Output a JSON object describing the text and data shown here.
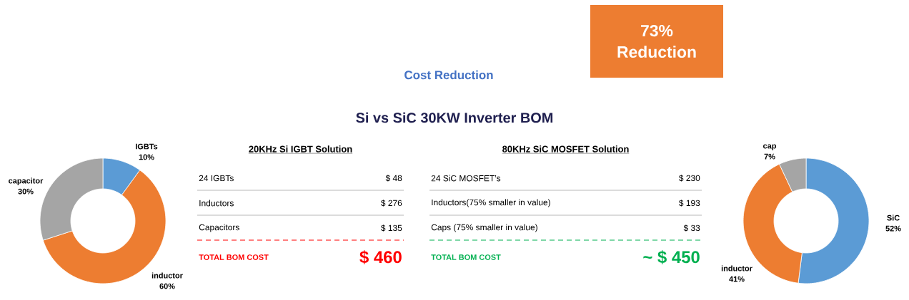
{
  "chart_data": [
    {
      "type": "other",
      "title": "Cost Reduction",
      "subtitle": "Si vs SiC 30KW Inverter BOM",
      "annotations": [
        "73% Reduction"
      ],
      "color": "#ed7d31"
    },
    {
      "type": "donut",
      "categories": [
        "IGBTs",
        "inductor",
        "capacitor"
      ],
      "values": [
        10,
        60,
        30
      ],
      "colors": [
        "#5b9bd5",
        "#ed7d31",
        "#a5a5a5"
      ],
      "value_labels": [
        "10%",
        "60%",
        "30%"
      ],
      "data_labels": true
    },
    {
      "type": "other",
      "title": "20KHz Si IGBT Solution",
      "annotations": [
        "24 IGBTs",
        "$ 48",
        "Inductors",
        "$ 276",
        "Capacitors",
        "$ 135",
        "TOTAL BOM COST",
        "$ 460"
      ],
      "color": "#ff0000"
    },
    {
      "type": "other",
      "title": "80KHz SiC MOSFET Solution",
      "annotations": [
        "24 SiC MOSFET’s",
        "$ 230",
        "Inductors(75% smaller in value)",
        "$ 193",
        "Caps (75% smaller in value)",
        "$ 33",
        "TOTAL BOM COST",
        "~ $ 450"
      ],
      "color": "#00b050"
    },
    {
      "type": "donut",
      "categories": [
        "SiC",
        "inductor",
        "cap"
      ],
      "values": [
        52,
        41,
        7
      ],
      "colors": [
        "#5b9bd5",
        "#ed7d31",
        "#a5a5a5"
      ],
      "value_labels": [
        "52%",
        "41%",
        "7%"
      ],
      "data_labels": true
    }
  ]
}
